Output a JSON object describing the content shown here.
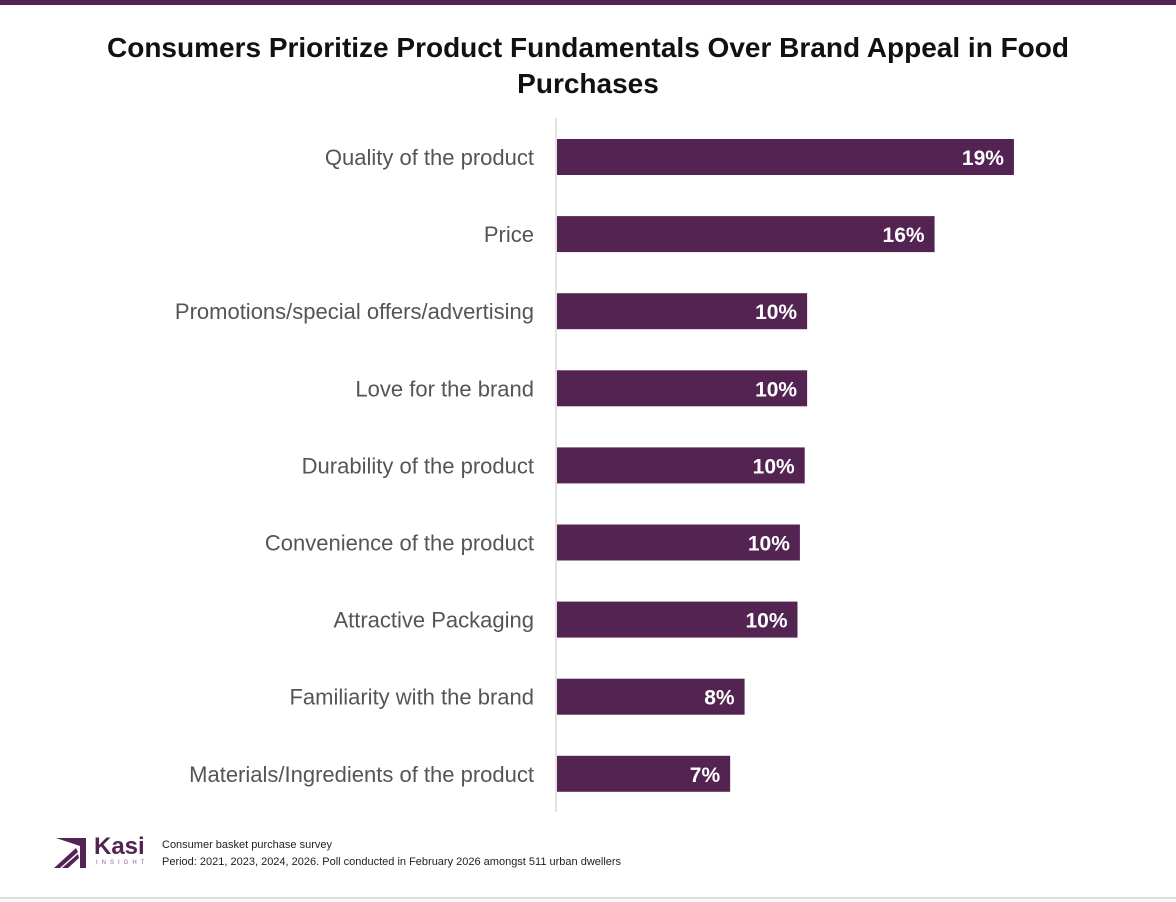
{
  "title": "Consumers Prioritize Product Fundamentals Over Brand Appeal in Food Purchases",
  "colors": {
    "bar": "#532452",
    "accent": "#532452",
    "axis": "#d9d9d9"
  },
  "chart_data": {
    "type": "bar",
    "orientation": "horizontal",
    "title": "Consumers Prioritize Product Fundamentals Over Brand Appeal in Food Purchases",
    "categories": [
      "Quality of the product",
      "Price",
      "Promotions/special offers/advertising",
      "Love for the brand",
      "Durability of the product",
      "Convenience of the product",
      "Attractive Packaging",
      "Familiarity with the brand",
      "Materials/Ingredients of the product"
    ],
    "values": [
      19.0,
      15.7,
      10.4,
      10.4,
      10.3,
      10.1,
      10.0,
      7.8,
      7.2
    ],
    "labels": [
      "19%",
      "16%",
      "10%",
      "10%",
      "10%",
      "10%",
      "10%",
      "8%",
      "7%"
    ],
    "unit": "%",
    "xlim": [
      0,
      19.5
    ],
    "grid": false,
    "legend": "none"
  },
  "footer": {
    "logo": "Kasi",
    "logo_sub": "INSIGHT",
    "source": "Consumer basket purchase survey",
    "period": "Period: 2021, 2023, 2024, 2026. Poll conducted in February 2026 amongst 511 urban dwellers"
  }
}
